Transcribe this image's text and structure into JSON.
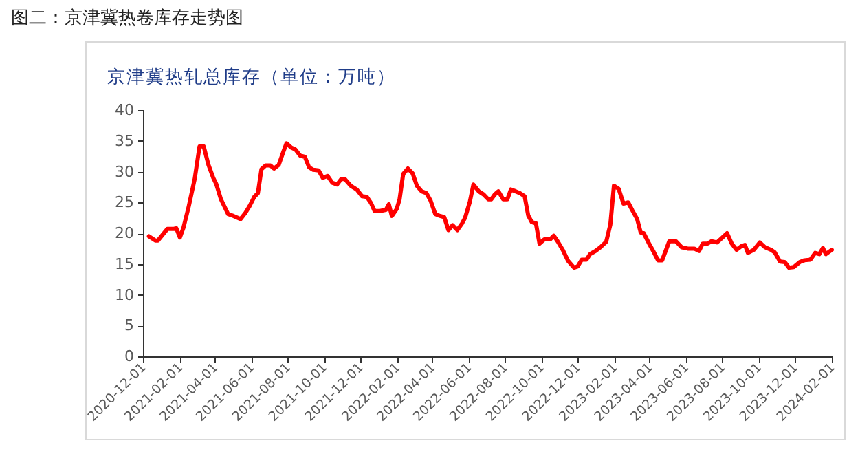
{
  "chart_data": {
    "type": "line",
    "title": "图二：京津冀热卷库存走势图",
    "subtitle": "京津冀热轧总库存（单位：万吨）",
    "x": [
      "2020-12-11",
      "2020-12-22",
      "2020-12-26",
      "2021-01-11",
      "2021-01-22",
      "2021-01-26",
      "2021-02-01",
      "2021-02-07",
      "2021-02-16",
      "2021-02-26",
      "2021-03-06",
      "2021-03-13",
      "2021-03-21",
      "2021-03-29",
      "2021-04-03",
      "2021-04-11",
      "2021-04-23",
      "2021-05-02",
      "2021-05-14",
      "2021-05-22",
      "2021-05-29",
      "2021-06-06",
      "2021-06-12",
      "2021-06-18",
      "2021-06-25",
      "2021-07-03",
      "2021-07-09",
      "2021-07-17",
      "2021-07-25",
      "2021-07-30",
      "2021-08-07",
      "2021-08-14",
      "2021-08-22",
      "2021-08-30",
      "2021-09-06",
      "2021-09-13",
      "2021-09-22",
      "2021-09-29",
      "2021-10-07",
      "2021-10-15",
      "2021-10-23",
      "2021-10-30",
      "2021-11-05",
      "2021-11-15",
      "2021-11-25",
      "2021-12-04",
      "2021-12-12",
      "2021-12-19",
      "2021-12-25",
      "2022-01-03",
      "2022-01-13",
      "2022-01-18",
      "2022-01-23",
      "2022-01-31",
      "2022-02-05",
      "2022-02-11",
      "2022-02-19",
      "2022-02-27",
      "2022-03-06",
      "2022-03-14",
      "2022-03-22",
      "2022-03-29",
      "2022-04-06",
      "2022-04-14",
      "2022-04-21",
      "2022-04-28",
      "2022-05-05",
      "2022-05-13",
      "2022-05-21",
      "2022-05-26",
      "2022-06-03",
      "2022-06-09",
      "2022-06-18",
      "2022-06-26",
      "2022-07-04",
      "2022-07-09",
      "2022-07-15",
      "2022-07-21",
      "2022-07-29",
      "2022-08-05",
      "2022-08-11",
      "2022-08-19",
      "2022-08-26",
      "2022-09-03",
      "2022-09-09",
      "2022-09-15",
      "2022-09-22",
      "2022-09-28",
      "2022-10-06",
      "2022-10-16",
      "2022-10-22",
      "2022-10-29",
      "2022-11-06",
      "2022-11-15",
      "2022-11-25",
      "2022-12-01",
      "2022-12-08",
      "2022-12-16",
      "2022-12-22",
      "2022-12-31",
      "2023-01-08",
      "2023-01-18",
      "2023-01-25",
      "2023-01-31",
      "2023-02-08",
      "2023-02-16",
      "2023-02-24",
      "2023-03-03",
      "2023-03-11",
      "2023-03-17",
      "2023-03-22",
      "2023-03-30",
      "2023-04-07",
      "2023-04-15",
      "2023-04-22",
      "2023-05-04",
      "2023-05-15",
      "2023-05-25",
      "2023-06-04",
      "2023-06-15",
      "2023-06-23",
      "2023-06-29",
      "2023-07-07",
      "2023-07-14",
      "2023-07-23",
      "2023-07-31",
      "2023-08-09",
      "2023-08-17",
      "2023-08-25",
      "2023-09-02",
      "2023-09-08",
      "2023-09-13",
      "2023-09-23",
      "2023-10-03",
      "2023-10-12",
      "2023-10-22",
      "2023-10-28",
      "2023-11-06",
      "2023-11-14",
      "2023-11-21",
      "2023-11-29",
      "2023-12-09",
      "2023-12-17",
      "2023-12-27",
      "2024-01-04",
      "2024-01-11",
      "2024-01-17",
      "2024-01-22",
      "2024-02-01"
    ],
    "series": [
      {
        "color": "#ff0000",
        "values": [
          19.5,
          18.8,
          18.8,
          20.7,
          20.7,
          20.8,
          19.3,
          20.9,
          24.4,
          28.9,
          34.1,
          34.1,
          31.1,
          29.0,
          28.0,
          25.5,
          23.1,
          22.8,
          22.3,
          23.3,
          24.4,
          25.9,
          26.5,
          30.4,
          31.0,
          31.0,
          30.5,
          31.1,
          33.3,
          34.6,
          33.9,
          33.6,
          32.6,
          32.4,
          30.7,
          30.3,
          30.2,
          29.0,
          29.3,
          28.2,
          27.9,
          28.8,
          28.8,
          27.7,
          27.1,
          26.0,
          25.9,
          24.9,
          23.6,
          23.6,
          23.8,
          24.7,
          22.8,
          23.9,
          25.5,
          29.6,
          30.5,
          29.7,
          27.7,
          26.8,
          26.5,
          25.3,
          23.1,
          22.8,
          22.6,
          20.5,
          21.3,
          20.5,
          21.6,
          22.5,
          25.1,
          27.9,
          26.8,
          26.3,
          25.5,
          25.5,
          26.3,
          26.8,
          25.5,
          25.5,
          27.1,
          26.8,
          26.5,
          26.0,
          22.9,
          21.8,
          21.6,
          18.3,
          19.0,
          19.0,
          19.6,
          18.6,
          17.3,
          15.5,
          14.4,
          14.6,
          15.7,
          15.7,
          16.6,
          17.1,
          17.7,
          18.6,
          21.4,
          27.7,
          27.2,
          24.8,
          25.0,
          23.7,
          22.3,
          20.1,
          20.0,
          18.5,
          17.1,
          15.6,
          15.6,
          18.7,
          18.7,
          17.7,
          17.5,
          17.5,
          17.1,
          18.3,
          18.3,
          18.7,
          18.5,
          19.2,
          20.0,
          18.3,
          17.3,
          17.9,
          18.1,
          16.8,
          17.3,
          18.5,
          17.7,
          17.3,
          16.9,
          15.4,
          15.3,
          14.4,
          14.5,
          15.3,
          15.6,
          15.7,
          16.8,
          16.6,
          17.6,
          16.6,
          17.3
        ]
      }
    ],
    "xlim": [
      "2020-12-01",
      "2024-02-01"
    ],
    "xticks": [
      "2020-12-01",
      "2021-02-01",
      "2021-04-01",
      "2021-06-01",
      "2021-08-01",
      "2021-10-01",
      "2021-12-01",
      "2022-02-01",
      "2022-04-01",
      "2022-06-01",
      "2022-08-01",
      "2022-10-01",
      "2022-12-01",
      "2023-02-01",
      "2023-04-01",
      "2023-06-01",
      "2023-08-01",
      "2023-10-01",
      "2023-12-01",
      "2024-02-01"
    ],
    "ylim": [
      0,
      40
    ],
    "yticks": [
      0,
      5,
      10,
      15,
      20,
      25,
      30,
      35,
      40
    ],
    "grid": false,
    "marker": "none",
    "line_style": "solid"
  }
}
